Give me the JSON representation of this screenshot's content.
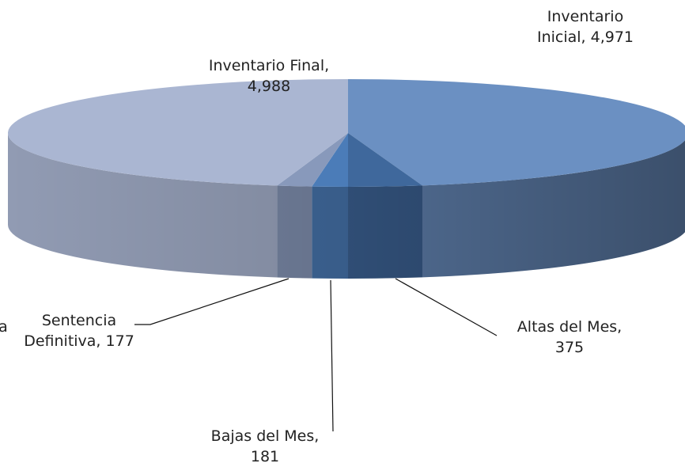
{
  "chart_data": {
    "type": "pie",
    "style": "3d",
    "values": [
      4971,
      375,
      181,
      177,
      4988
    ],
    "value_labels": [
      "Inventario\nInicial, 4,971",
      "Altas del Mes,\n375",
      "Bajas del Mes,\n181",
      "Sentencia\nDefinitiva, 177",
      "Inventario Final,\n4,988"
    ],
    "colors": [
      "#6b90c2",
      "#3f689c",
      "#4b7cb8",
      "#8899bb",
      "#aab6d2"
    ],
    "annotations": [
      "a"
    ]
  }
}
